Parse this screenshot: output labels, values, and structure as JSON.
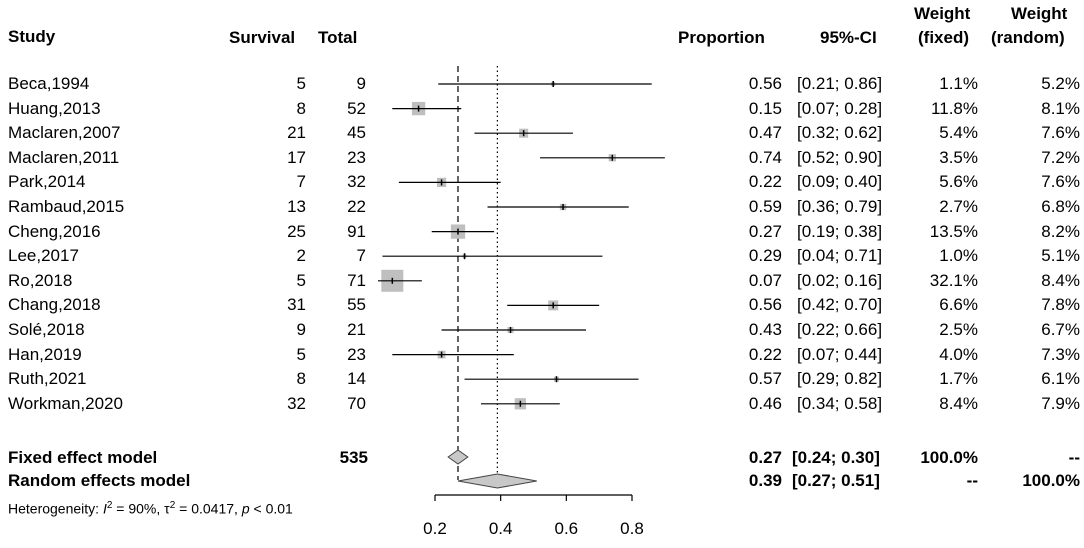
{
  "headers": {
    "study": "Study",
    "survival": "Survival",
    "total": "Total",
    "proportion": "Proportion",
    "ci": "95%-CI",
    "weight_fixed_top": "Weight",
    "weight_fixed_bottom": "(fixed)",
    "weight_random_top": "Weight",
    "weight_random_bottom": "(random)"
  },
  "chart_data": {
    "type": "forest",
    "xlim": [
      0.1,
      0.8
    ],
    "xticks": [
      "0.2",
      "0.4",
      "0.6",
      "0.8"
    ],
    "xtick_values": [
      0.2,
      0.4,
      0.6,
      0.8
    ],
    "fixed_line": 0.27,
    "random_line": 0.39,
    "studies": [
      {
        "study": "Beca,1994",
        "survival": "5",
        "total": "9",
        "prop_text": "0.56",
        "ci_text": "[0.21; 0.86]",
        "w_fixed": "1.1%",
        "w_random": "5.2%",
        "est": 0.56,
        "lo": 0.21,
        "hi": 0.86,
        "weight": 1.1
      },
      {
        "study": "Huang,2013",
        "survival": "8",
        "total": "52",
        "prop_text": "0.15",
        "ci_text": "[0.07; 0.28]",
        "w_fixed": "11.8%",
        "w_random": "8.1%",
        "est": 0.15,
        "lo": 0.07,
        "hi": 0.28,
        "weight": 11.8
      },
      {
        "study": "Maclaren,2007",
        "survival": "21",
        "total": "45",
        "prop_text": "0.47",
        "ci_text": "[0.32; 0.62]",
        "w_fixed": "5.4%",
        "w_random": "7.6%",
        "est": 0.47,
        "lo": 0.32,
        "hi": 0.62,
        "weight": 5.4
      },
      {
        "study": "Maclaren,2011",
        "survival": "17",
        "total": "23",
        "prop_text": "0.74",
        "ci_text": "[0.52; 0.90]",
        "w_fixed": "3.5%",
        "w_random": "7.2%",
        "est": 0.74,
        "lo": 0.52,
        "hi": 0.9,
        "weight": 3.5
      },
      {
        "study": "Park,2014",
        "survival": "7",
        "total": "32",
        "prop_text": "0.22",
        "ci_text": "[0.09; 0.40]",
        "w_fixed": "5.6%",
        "w_random": "7.6%",
        "est": 0.22,
        "lo": 0.09,
        "hi": 0.4,
        "weight": 5.6
      },
      {
        "study": "Rambaud,2015",
        "survival": "13",
        "total": "22",
        "prop_text": "0.59",
        "ci_text": "[0.36; 0.79]",
        "w_fixed": "2.7%",
        "w_random": "6.8%",
        "est": 0.59,
        "lo": 0.36,
        "hi": 0.79,
        "weight": 2.7
      },
      {
        "study": "Cheng,2016",
        "survival": "25",
        "total": "91",
        "prop_text": "0.27",
        "ci_text": "[0.19; 0.38]",
        "w_fixed": "13.5%",
        "w_random": "8.2%",
        "est": 0.27,
        "lo": 0.19,
        "hi": 0.38,
        "weight": 13.5
      },
      {
        "study": "Lee,2017",
        "survival": "2",
        "total": "7",
        "prop_text": "0.29",
        "ci_text": "[0.04; 0.71]",
        "w_fixed": "1.0%",
        "w_random": "5.1%",
        "est": 0.29,
        "lo": 0.04,
        "hi": 0.71,
        "weight": 1.0
      },
      {
        "study": "Ro,2018",
        "survival": "5",
        "total": "71",
        "prop_text": "0.07",
        "ci_text": "[0.02; 0.16]",
        "w_fixed": "32.1%",
        "w_random": "8.4%",
        "est": 0.07,
        "lo": 0.02,
        "hi": 0.16,
        "weight": 32.1
      },
      {
        "study": "Chang,2018",
        "survival": "31",
        "total": "55",
        "prop_text": "0.56",
        "ci_text": "[0.42; 0.70]",
        "w_fixed": "6.6%",
        "w_random": "7.8%",
        "est": 0.56,
        "lo": 0.42,
        "hi": 0.7,
        "weight": 6.6
      },
      {
        "study": "Solé,2018",
        "survival": "9",
        "total": "21",
        "prop_text": "0.43",
        "ci_text": "[0.22; 0.66]",
        "w_fixed": "2.5%",
        "w_random": "6.7%",
        "est": 0.43,
        "lo": 0.22,
        "hi": 0.66,
        "weight": 2.5
      },
      {
        "study": "Han,2019",
        "survival": "5",
        "total": "23",
        "prop_text": "0.22",
        "ci_text": "[0.07; 0.44]",
        "w_fixed": "4.0%",
        "w_random": "7.3%",
        "est": 0.22,
        "lo": 0.07,
        "hi": 0.44,
        "weight": 4.0
      },
      {
        "study": "Ruth,2021",
        "survival": "8",
        "total": "14",
        "prop_text": "0.57",
        "ci_text": "[0.29; 0.82]",
        "w_fixed": "1.7%",
        "w_random": "6.1%",
        "est": 0.57,
        "lo": 0.29,
        "hi": 0.82,
        "weight": 1.7
      },
      {
        "study": "Workman,2020",
        "survival": "32",
        "total": "70",
        "prop_text": "0.46",
        "ci_text": "[0.34; 0.58]",
        "w_fixed": "8.4%",
        "w_random": "7.9%",
        "est": 0.46,
        "lo": 0.34,
        "hi": 0.58,
        "weight": 8.4
      }
    ],
    "fixed": {
      "label": "Fixed effect model",
      "total": "535",
      "prop_text": "0.27",
      "ci_text": "[0.24; 0.30]",
      "w_fixed": "100.0%",
      "w_random": "--",
      "est": 0.27,
      "lo": 0.24,
      "hi": 0.3
    },
    "random": {
      "label": "Random effects model",
      "prop_text": "0.39",
      "ci_text": "[0.27; 0.51]",
      "w_fixed": "--",
      "w_random": "100.0%",
      "est": 0.39,
      "lo": 0.27,
      "hi": 0.51
    },
    "heterogeneity": {
      "prefix": "Heterogeneity: ",
      "i_symbol": "I",
      "i_value": " = 90%, ",
      "tau_symbol": "τ",
      "tau_value": " = 0.0417, ",
      "p_symbol": "p",
      "p_value": " < 0.01",
      "sup": "2"
    },
    "colors": {
      "square": "#bfbfbf",
      "line": "#000000",
      "diamond": "#c8c8c8"
    }
  }
}
